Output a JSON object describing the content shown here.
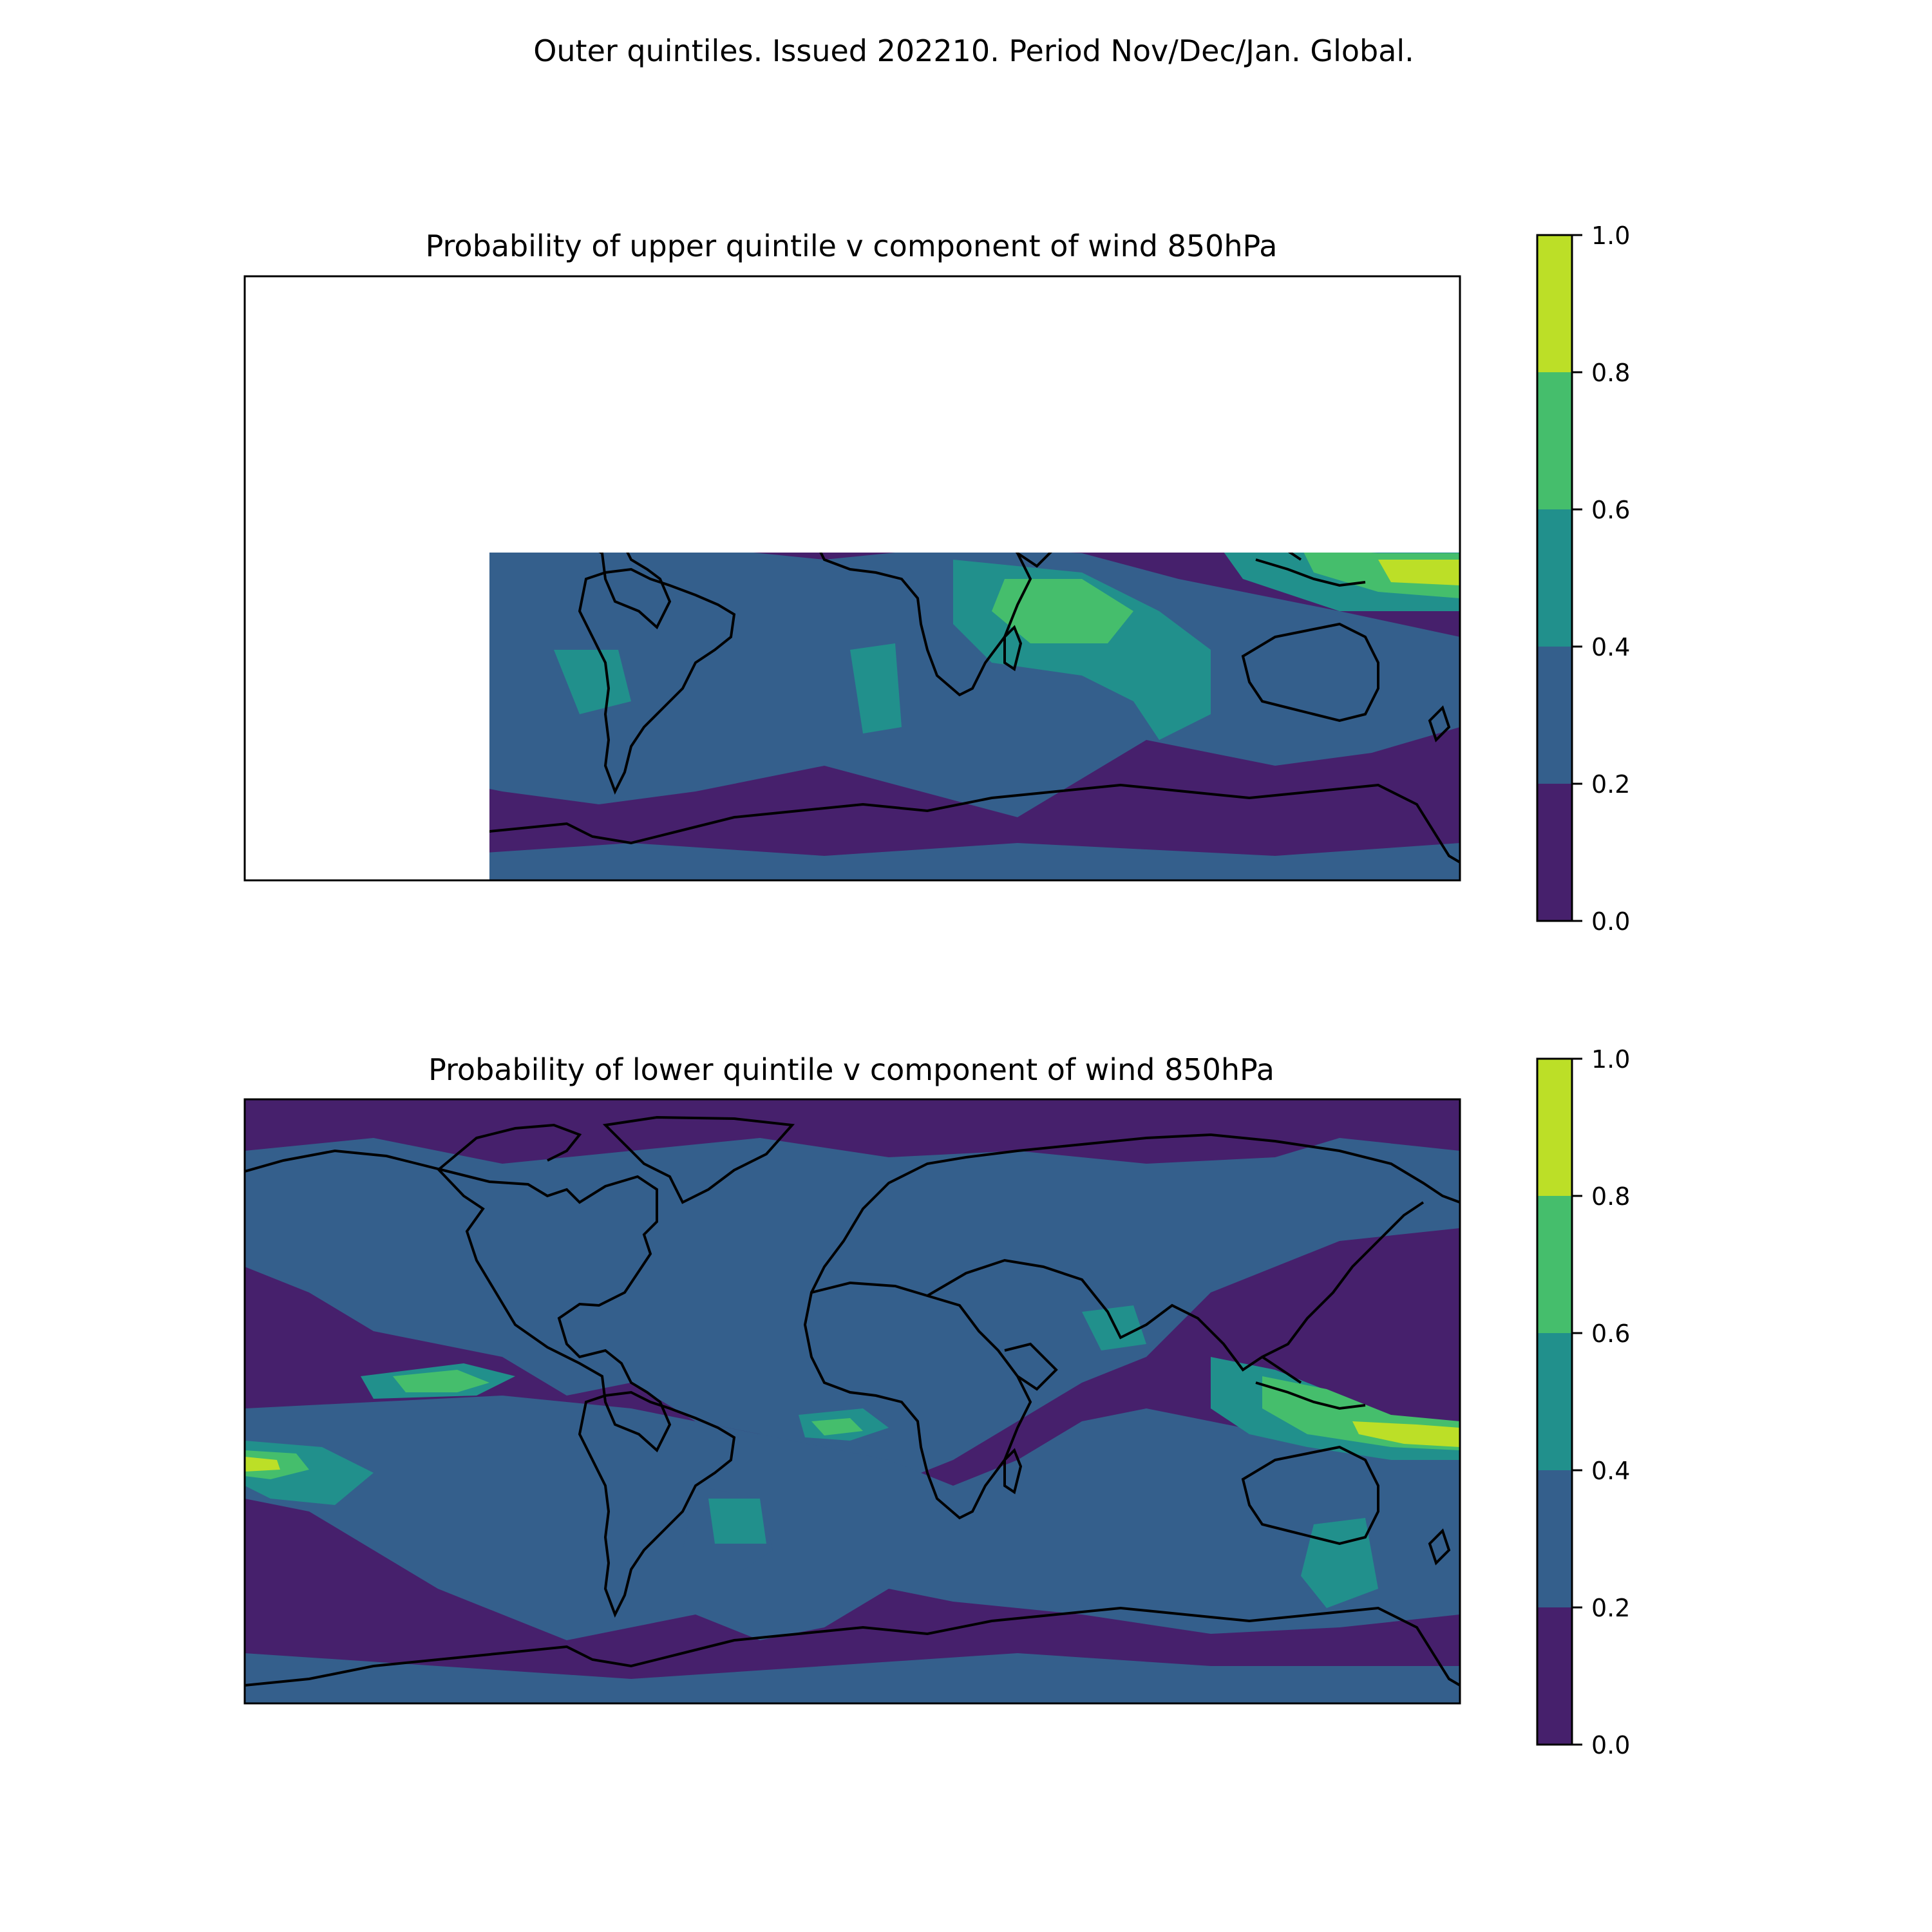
{
  "figure": {
    "suptitle": "Outer quintiles. Issued 202210. Period Nov/Dec/Jan. Global."
  },
  "colormap": {
    "bins": [
      {
        "from": 0.0,
        "to": 0.2,
        "color": "#46206c"
      },
      {
        "from": 0.2,
        "to": 0.4,
        "color": "#345f8c"
      },
      {
        "from": 0.4,
        "to": 0.6,
        "color": "#21908c"
      },
      {
        "from": 0.6,
        "to": 0.8,
        "color": "#45be6c"
      },
      {
        "from": 0.8,
        "to": 1.0,
        "color": "#bcdf27"
      }
    ],
    "coastline_color": "#000000"
  },
  "panels": [
    {
      "title": "Probability of upper quintile v component of wind 850hPa",
      "colorbar": {
        "ticks": [
          "0.0",
          "0.2",
          "0.4",
          "0.6",
          "0.8",
          "1.0"
        ]
      }
    },
    {
      "title": "Probability of lower quintile v component of wind 850hPa",
      "colorbar": {
        "ticks": [
          "0.0",
          "0.2",
          "0.4",
          "0.6",
          "0.8",
          "1.0"
        ]
      }
    }
  ]
}
